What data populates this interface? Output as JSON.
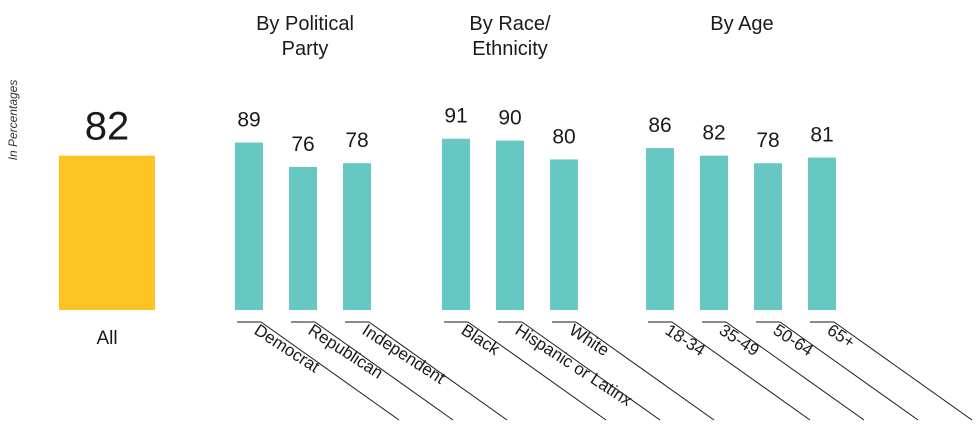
{
  "chart_data": {
    "type": "bar",
    "ylabel": "In Percentages",
    "ylim": [
      0,
      100
    ],
    "grid": false,
    "colors": {
      "overall": "#FDC323",
      "group": "#66C7C3",
      "text": "#1a1a1a"
    },
    "overall": {
      "category": "All",
      "value": 82
    },
    "groups": [
      {
        "title": "By Political Party",
        "title_lines": [
          "By Political",
          "Party"
        ],
        "categories": [
          "Democrat",
          "Republican",
          "Independent"
        ],
        "values": [
          89,
          76,
          78
        ]
      },
      {
        "title": "By Race/ Ethnicity",
        "title_lines": [
          "By Race/",
          "Ethnicity"
        ],
        "categories": [
          "Black",
          "Hispanic or Latinx",
          "White"
        ],
        "values": [
          91,
          90,
          80
        ]
      },
      {
        "title": "By Age",
        "title_lines": [
          "By Age"
        ],
        "categories": [
          "18-34",
          "35-49",
          "50-64",
          "65+"
        ],
        "values": [
          86,
          82,
          78,
          81
        ]
      }
    ]
  }
}
